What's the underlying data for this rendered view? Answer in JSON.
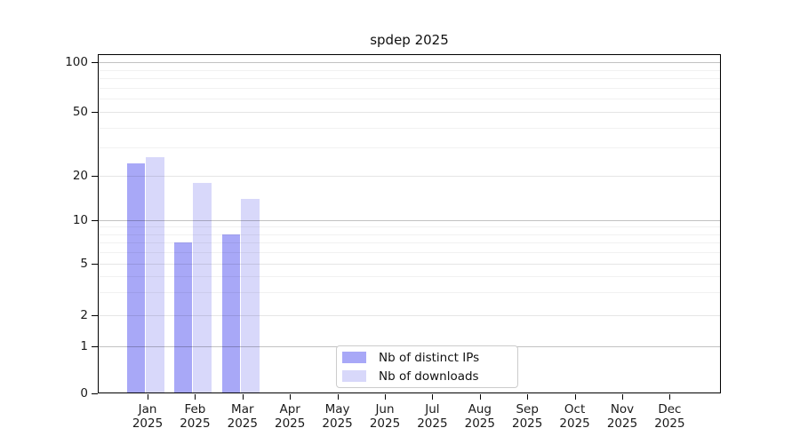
{
  "chart_data": {
    "type": "bar",
    "title": "spdep 2025",
    "categories": [
      "Jan",
      "Feb",
      "Mar",
      "Apr",
      "May",
      "Jun",
      "Jul",
      "Aug",
      "Sep",
      "Oct",
      "Nov",
      "Dec"
    ],
    "year_label": "2025",
    "series": [
      {
        "name": "Nb of distinct IPs",
        "color": "#a8a8f7",
        "values": [
          24,
          7,
          8,
          0,
          0,
          0,
          0,
          0,
          0,
          0,
          0,
          0
        ]
      },
      {
        "name": "Nb of downloads",
        "color": "#d8d8fa",
        "values": [
          26,
          18,
          14,
          0,
          0,
          0,
          0,
          0,
          0,
          0,
          0,
          0
        ]
      }
    ],
    "y_ticks": [
      0,
      1,
      2,
      5,
      10,
      20,
      50,
      100
    ],
    "y_major_gridlines": [
      1,
      10,
      100
    ],
    "y_minor_gridlines": [
      3,
      4,
      6,
      7,
      8,
      9,
      30,
      40,
      60,
      70,
      80,
      90
    ],
    "y_scale": "log with zero baseline",
    "ylim": [
      0,
      110
    ],
    "grid": true,
    "legend_position": "lower center"
  }
}
